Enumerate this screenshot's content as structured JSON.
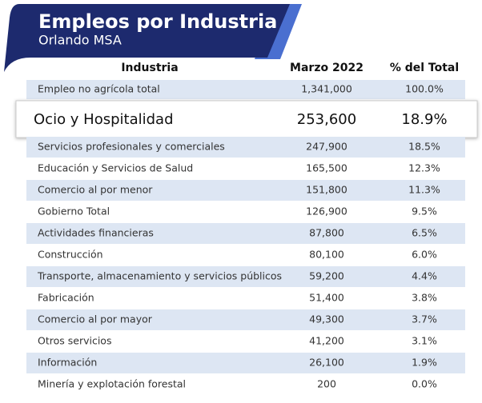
{
  "header": {
    "title": "Empleos por Industria",
    "subtitle": "Orlando MSA"
  },
  "table": {
    "columns": [
      "Industria",
      "Marzo 2022",
      "% del Total"
    ],
    "rows": [
      [
        "Empleo no agrícola total",
        "1,341,000",
        "100.0%"
      ],
      [
        "Ocio y Hospitalidad",
        "253,600",
        "18.9%"
      ],
      [
        "Servicios profesionales y comerciales",
        "247,900",
        "18.5%"
      ],
      [
        "Educación y Servicios de Salud",
        "165,500",
        "12.3%"
      ],
      [
        "Comercio al por menor",
        "151,800",
        "11.3%"
      ],
      [
        "Gobierno Total",
        "126,900",
        "9.5%"
      ],
      [
        "Actividades financieras",
        "87,800",
        "6.5%"
      ],
      [
        "Construcción",
        "80,100",
        "6.0%"
      ],
      [
        "Transporte, almacenamiento y servicios públicos",
        "59,200",
        "4.4%"
      ],
      [
        "Fabricación",
        "51,400",
        "3.8%"
      ],
      [
        "Comercio al por mayor",
        "49,300",
        "3.7%"
      ],
      [
        "Otros servicios",
        "41,200",
        "3.1%"
      ],
      [
        "Información",
        "26,100",
        "1.9%"
      ],
      [
        "Minería y explotación forestal",
        "200",
        "0.0%"
      ]
    ]
  }
}
